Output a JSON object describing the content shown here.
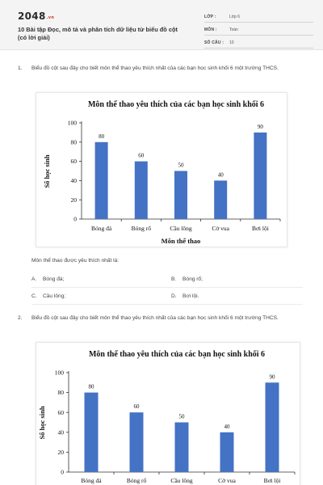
{
  "header": {
    "logo": "2048",
    "logo_tld": ".vn",
    "title": "10 Bài tập Đọc, mô tả và phân tích dữ liệu từ biểu đồ cột (có lời giải)",
    "meta": [
      {
        "label": "LỚP :",
        "value": "Lớp 6"
      },
      {
        "label": "MÔN :",
        "value": "Toán"
      },
      {
        "label": "SỐ CÂU :",
        "value": "10"
      }
    ]
  },
  "questions": [
    {
      "number": "1.",
      "text": "Biểu đồ cột sau đây cho biết môn thể thao yêu thích nhất của các bạn học sinh khối 6 một trường THCS.",
      "prompt": "Môn thể thao được yêu thích nhất là:",
      "options": [
        {
          "letter": "A.",
          "text": "Bóng đá;"
        },
        {
          "letter": "B.",
          "text": "Bóng rổ;"
        },
        {
          "letter": "C.",
          "text": "Cầu lông;"
        },
        {
          "letter": "D.",
          "text": "Bơi lội."
        }
      ]
    },
    {
      "number": "2.",
      "text": "Biểu đồ cột sau đây cho biết môn thể thao yêu thích nhất của các bạn học sinh khối 6 một trường THCS."
    }
  ],
  "colors": {
    "bar": "#4472c4",
    "axis": "#333333"
  },
  "chart_data": [
    {
      "type": "bar",
      "title": "Môn thể thao yêu thích của các bạn học sinh khối 6",
      "xlabel": "Môn thể thao",
      "ylabel": "Số học sinh",
      "categories": [
        "Bóng đá",
        "Bóng rổ",
        "Cầu lông",
        "Cờ vua",
        "Bơi lội"
      ],
      "values": [
        80,
        60,
        50,
        40,
        90
      ],
      "ylim": [
        0,
        100
      ],
      "yticks": [
        0,
        20,
        40,
        60,
        80,
        100
      ],
      "grid": false,
      "data_labels": true
    },
    {
      "type": "bar",
      "title": "Môn thể thao yêu thích của các bạn học sinh khối 6",
      "xlabel": "",
      "ylabel": "Số học sinh",
      "categories": [
        "Bóng đá",
        "Bóng rổ",
        "Cầu lông",
        "Cờ vua",
        "Bơi lội"
      ],
      "values": [
        80,
        60,
        50,
        40,
        90
      ],
      "ylim": [
        0,
        100
      ],
      "yticks": [
        0,
        20,
        40,
        60,
        80,
        100
      ],
      "grid": false,
      "data_labels": true
    }
  ]
}
